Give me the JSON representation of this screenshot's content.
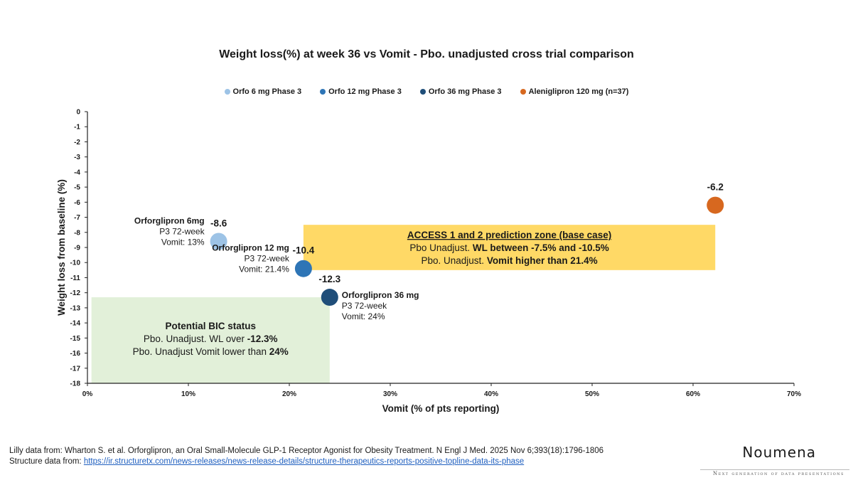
{
  "chart_data": {
    "type": "scatter",
    "title": "Weight loss(%) at week 36 vs Vomit - Pbo. unadjusted cross trial comparison",
    "xlabel": "Vomit (% of pts reporting)",
    "ylabel": "Weight loss from baseline (%)",
    "xlim": [
      0,
      70
    ],
    "ylim": [
      -18,
      0
    ],
    "x_ticks": [
      "0%",
      "10%",
      "20%",
      "30%",
      "40%",
      "50%",
      "60%",
      "70%"
    ],
    "x_tick_values": [
      0,
      10,
      20,
      30,
      40,
      50,
      60,
      70
    ],
    "y_ticks": [
      0,
      -1,
      -2,
      -3,
      -4,
      -5,
      -6,
      -7,
      -8,
      -9,
      -10,
      -11,
      -12,
      -13,
      -14,
      -15,
      -16,
      -17,
      -18
    ],
    "legend_position": "top-center",
    "series": [
      {
        "name": "Orfo 6 mg Phase 3",
        "color": "#9dc3e6",
        "x": 13,
        "y": -8.6,
        "value_label": "-8.6",
        "annotation": [
          "Orforglipron 6mg",
          "P3 72-week",
          "Vomit: 13%"
        ],
        "annotation_side": "left"
      },
      {
        "name": "Orfo 12 mg Phase 3",
        "color": "#2e75b6",
        "x": 21.4,
        "y": -10.4,
        "value_label": "-10.4",
        "annotation": [
          "Orforglipron 12 mg",
          "P3 72-week",
          "Vomit: 21.4%"
        ],
        "annotation_side": "left"
      },
      {
        "name": "Orfo 36 mg Phase 3",
        "color": "#1f4e79",
        "x": 24,
        "y": -12.3,
        "value_label": "-12.3",
        "annotation": [
          "Orforglipron 36 mg",
          "P3 72-week",
          "Vomit: 24%"
        ],
        "annotation_side": "right"
      },
      {
        "name": "Aleniglipron  120 mg (n=37)",
        "color": "#d7681f",
        "x": 62.2,
        "y": -6.2,
        "value_label": "-6.2",
        "annotation": [],
        "annotation_side": "none"
      }
    ],
    "zones": [
      {
        "name": "ACCESS 1 and 2 prediction zone (base case)",
        "color": "#ffd966",
        "x_range": [
          21.4,
          62.2
        ],
        "y_range": [
          -7.5,
          -10.5
        ],
        "lines": [
          [
            {
              "t": "ACCESS 1 and 2 prediction zone (base case)",
              "b": true,
              "u": true
            }
          ],
          [
            {
              "t": "Pbo Unadjust. ",
              "b": false
            },
            {
              "t": "WL between -7.5% and -10.5%",
              "b": true
            }
          ],
          [
            {
              "t": "Pbo. Unadjust. ",
              "b": false
            },
            {
              "t": "Vomit higher than 21.4%",
              "b": true
            }
          ]
        ]
      },
      {
        "name": "Potential BIC status",
        "color": "#e2f0d9",
        "x_range": [
          0.4,
          24
        ],
        "y_range": [
          -12.3,
          -18
        ],
        "lines": [
          [
            {
              "t": "Potential BIC status",
              "b": true
            }
          ],
          [
            {
              "t": "Pbo. Unadjust. WL over ",
              "b": false
            },
            {
              "t": "-12.3%",
              "b": true
            }
          ],
          [
            {
              "t": "Pbo. Unadjust Vomit lower than ",
              "b": false
            },
            {
              "t": "24%",
              "b": true
            }
          ]
        ]
      }
    ]
  },
  "footer": {
    "line1": "Lilly data from: Wharton S. et al. Orforglipron, an Oral Small-Molecule GLP-1 Receptor Agonist for Obesity Treatment. N Engl J Med. 2025 Nov 6;393(18):1796-1806",
    "line2_prefix": "Structure data from: ",
    "line2_link": "https://ir.structuretx.com/news-releases/news-release-details/structure-therapeutics-reports-positive-topline-data-its-phase"
  },
  "brand": {
    "name": "Noumena",
    "tagline": "Next generation of data presentations"
  }
}
